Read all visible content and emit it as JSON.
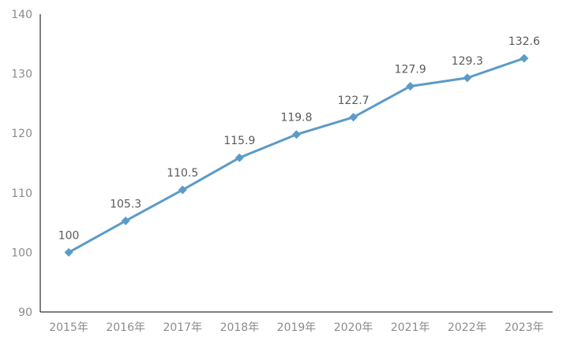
{
  "chart_data": {
    "type": "line",
    "categories": [
      "2015年",
      "2016年",
      "2017年",
      "2018年",
      "2019年",
      "2020年",
      "2021年",
      "2022年",
      "2023年"
    ],
    "series": [
      {
        "values": [
          100,
          105.3,
          110.5,
          115.9,
          119.8,
          122.7,
          127.9,
          129.3,
          132.6
        ],
        "labels": [
          "100",
          "105.3",
          "110.5",
          "115.9",
          "119.8",
          "122.7",
          "127.9",
          "129.3",
          "132.6"
        ],
        "color": "#5b9bc8",
        "marker": "diamond"
      }
    ],
    "yticks": [
      "90",
      "100",
      "110",
      "120",
      "130",
      "140"
    ],
    "ylim": [
      90,
      140
    ],
    "title": "",
    "xlabel": "",
    "ylabel": "",
    "grid": false,
    "legend": "none"
  }
}
